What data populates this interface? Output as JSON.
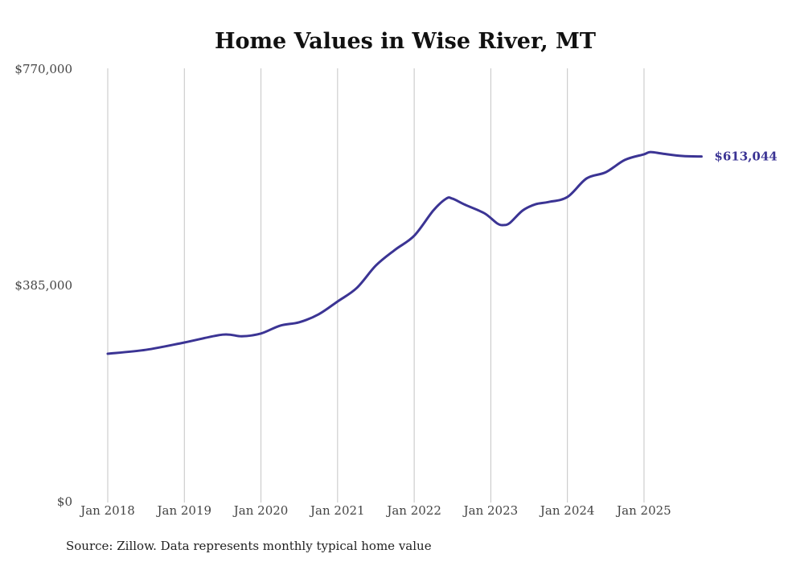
{
  "chart_data": {
    "type": "line",
    "title": "Home Values in Wise River, MT",
    "source": "Source: Zillow. Data represents monthly typical home value",
    "ylim": [
      0,
      770000
    ],
    "y_ticks": [
      {
        "value": 0,
        "label": "$0"
      },
      {
        "value": 385000,
        "label": "$385,000"
      },
      {
        "value": 770000,
        "label": "$770,000"
      }
    ],
    "x_ticks": [
      {
        "month": 0,
        "label": "Jan 2018"
      },
      {
        "month": 12,
        "label": "Jan 2019"
      },
      {
        "month": 24,
        "label": "Jan 2020"
      },
      {
        "month": 36,
        "label": "Jan 2021"
      },
      {
        "month": 48,
        "label": "Jan 2022"
      },
      {
        "month": 60,
        "label": "Jan 2023"
      },
      {
        "month": 72,
        "label": "Jan 2024"
      },
      {
        "month": 84,
        "label": "Jan 2025"
      }
    ],
    "grid": "vertical",
    "line_color": "#3b3494",
    "end_label": "$613,044",
    "series": [
      {
        "name": "Typical home value",
        "points": [
          [
            0,
            262000
          ],
          [
            6,
            269000
          ],
          [
            12,
            282000
          ],
          [
            18,
            296000
          ],
          [
            21,
            293000
          ],
          [
            24,
            298000
          ],
          [
            27,
            312000
          ],
          [
            30,
            318000
          ],
          [
            33,
            332000
          ],
          [
            36,
            355000
          ],
          [
            39,
            379000
          ],
          [
            42,
            419000
          ],
          [
            45,
            447000
          ],
          [
            48,
            472000
          ],
          [
            51,
            517000
          ],
          [
            53,
            538000
          ],
          [
            54,
            538000
          ],
          [
            56,
            527000
          ],
          [
            59,
            512000
          ],
          [
            61,
            494000
          ],
          [
            62,
            491000
          ],
          [
            63,
            495000
          ],
          [
            65,
            517000
          ],
          [
            67,
            528000
          ],
          [
            69,
            532000
          ],
          [
            72,
            541000
          ],
          [
            75,
            574000
          ],
          [
            78,
            585000
          ],
          [
            81,
            607000
          ],
          [
            84,
            617000
          ],
          [
            85,
            621000
          ],
          [
            87,
            618000
          ],
          [
            90,
            614000
          ],
          [
            93,
            613044
          ]
        ]
      }
    ]
  }
}
